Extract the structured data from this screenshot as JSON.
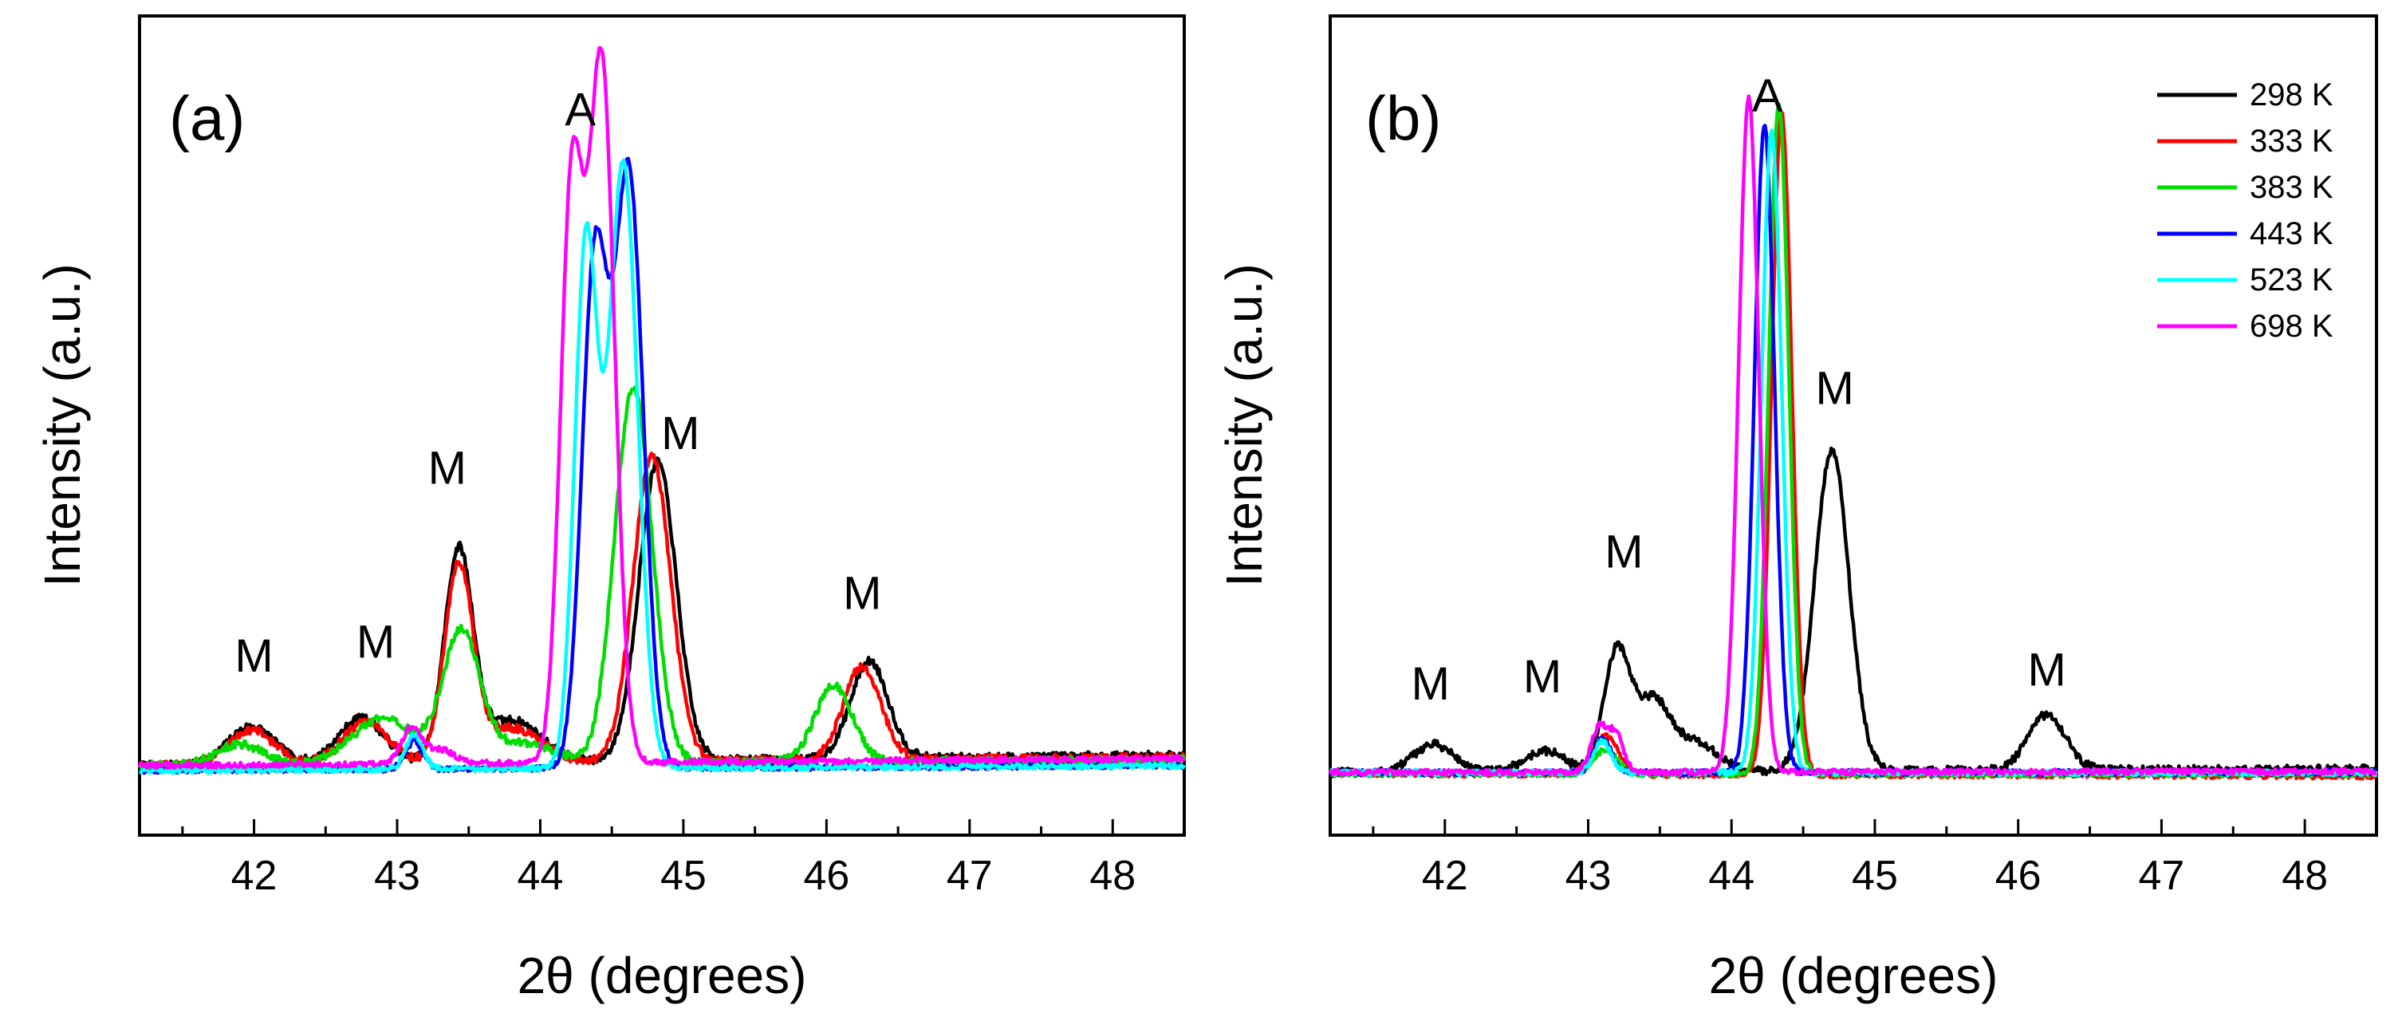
{
  "figure": {
    "panels": [
      "(a)",
      "(b)"
    ]
  },
  "chart_data": [
    {
      "type": "line",
      "panel_label": "(a)",
      "xlabel": "2θ (degrees)",
      "ylabel": "Intensity (a.u.)",
      "xlim": [
        41.2,
        48.5
      ],
      "ylim": [
        0,
        1.0
      ],
      "x_ticks": [
        42,
        43,
        44,
        45,
        46,
        47,
        48
      ],
      "y_ticks_visible": false,
      "grid": false,
      "annotations": [
        {
          "text": "M",
          "x": 42.0,
          "y": 0.235
        },
        {
          "text": "M",
          "x": 42.85,
          "y": 0.255
        },
        {
          "text": "M",
          "x": 43.35,
          "y": 0.505
        },
        {
          "text": "A",
          "x": 44.28,
          "y": 1.02
        },
        {
          "text": "M",
          "x": 44.98,
          "y": 0.555
        },
        {
          "text": "M",
          "x": 46.25,
          "y": 0.325
        }
      ],
      "series": [
        {
          "name": "298 K",
          "color": "#000000",
          "peaks": [
            [
              41.98,
              0.055,
              0.16
            ],
            [
              42.75,
              0.065,
              0.16
            ],
            [
              43.43,
              0.3,
              0.1
            ],
            [
              43.8,
              0.06,
              0.2
            ],
            [
              44.82,
              0.43,
              0.13
            ],
            [
              46.3,
              0.14,
              0.13
            ]
          ],
          "baseline": 0.1,
          "noise": 0.006,
          "end_level": 0.115
        },
        {
          "name": "333 K",
          "color": "#ff0000",
          "peaks": [
            [
              41.98,
              0.05,
              0.16
            ],
            [
              42.78,
              0.06,
              0.16
            ],
            [
              43.43,
              0.28,
              0.1
            ],
            [
              43.8,
              0.05,
              0.2
            ],
            [
              44.78,
              0.44,
              0.13
            ],
            [
              46.25,
              0.135,
              0.13
            ]
          ],
          "baseline": 0.1,
          "noise": 0.006,
          "end_level": 0.112
        },
        {
          "name": "383 K",
          "color": "#00dd00",
          "peaks": [
            [
              41.9,
              0.03,
              0.16
            ],
            [
              42.9,
              0.065,
              0.22
            ],
            [
              43.45,
              0.19,
              0.13
            ],
            [
              43.9,
              0.03,
              0.2
            ],
            [
              44.65,
              0.54,
              0.13
            ],
            [
              46.05,
              0.11,
              0.13
            ]
          ],
          "baseline": 0.1,
          "noise": 0.006,
          "end_level": 0.108
        },
        {
          "name": "443 K",
          "color": "#0000ff",
          "peaks": [
            [
              43.12,
              0.04,
              0.06
            ],
            [
              44.38,
              0.72,
              0.09
            ],
            [
              44.62,
              0.85,
              0.1
            ]
          ],
          "baseline": 0.093,
          "noise": 0.004,
          "end_level": 0.1
        },
        {
          "name": "523 K",
          "color": "#00ffff",
          "peaks": [
            [
              43.12,
              0.05,
              0.06
            ],
            [
              44.32,
              0.75,
              0.08
            ],
            [
              44.58,
              0.87,
              0.1
            ]
          ],
          "baseline": 0.093,
          "noise": 0.004,
          "end_level": 0.1
        },
        {
          "name": "698 K",
          "color": "#ff00ff",
          "peaks": [
            [
              43.1,
              0.05,
              0.07
            ],
            [
              43.3,
              0.02,
              0.1
            ],
            [
              44.22,
              0.82,
              0.08
            ],
            [
              44.43,
              1.0,
              0.09
            ]
          ],
          "baseline": 0.1,
          "noise": 0.004,
          "end_level": 0.11
        }
      ]
    },
    {
      "type": "line",
      "panel_label": "(b)",
      "xlabel": "2θ (degrees)",
      "ylabel": "Intensity (a.u.)",
      "xlim": [
        41.2,
        48.5
      ],
      "ylim": [
        0,
        1.0
      ],
      "x_ticks": [
        42,
        43,
        44,
        45,
        46,
        47,
        48
      ],
      "y_ticks_visible": false,
      "grid": false,
      "legend_position": "top-right",
      "annotations": [
        {
          "text": "M",
          "x": 41.9,
          "y": 0.195
        },
        {
          "text": "M",
          "x": 42.68,
          "y": 0.205
        },
        {
          "text": "M",
          "x": 43.25,
          "y": 0.385
        },
        {
          "text": "A",
          "x": 44.25,
          "y": 1.04
        },
        {
          "text": "M",
          "x": 44.72,
          "y": 0.62
        },
        {
          "text": "M",
          "x": 46.2,
          "y": 0.215
        }
      ],
      "series": [
        {
          "name": "298 K",
          "color": "#000000",
          "peaks": [
            [
              41.92,
              0.04,
              0.14
            ],
            [
              42.7,
              0.03,
              0.14
            ],
            [
              43.2,
              0.17,
              0.09
            ],
            [
              43.45,
              0.1,
              0.12
            ],
            [
              43.75,
              0.04,
              0.15
            ],
            [
              44.7,
              0.46,
              0.12
            ],
            [
              46.2,
              0.08,
              0.13
            ]
          ],
          "baseline": 0.09,
          "noise": 0.006,
          "end_level": 0.095
        },
        {
          "name": "333 K",
          "color": "#ff0000",
          "peaks": [
            [
              43.12,
              0.055,
              0.09
            ],
            [
              44.35,
              0.95,
              0.07
            ]
          ],
          "baseline": 0.088,
          "noise": 0.004,
          "end_level": 0.085
        },
        {
          "name": "383 K",
          "color": "#00dd00",
          "peaks": [
            [
              43.12,
              0.035,
              0.08
            ],
            [
              44.33,
              0.96,
              0.07
            ]
          ],
          "baseline": 0.088,
          "noise": 0.004,
          "end_level": 0.088
        },
        {
          "name": "443 K",
          "color": "#0000ff",
          "peaks": [
            [
              43.1,
              0.05,
              0.06
            ],
            [
              44.23,
              0.93,
              0.07
            ]
          ],
          "baseline": 0.09,
          "noise": 0.004,
          "end_level": 0.09
        },
        {
          "name": "523 K",
          "color": "#00ffff",
          "peaks": [
            [
              43.1,
              0.045,
              0.06
            ],
            [
              44.28,
              0.92,
              0.07
            ]
          ],
          "baseline": 0.09,
          "noise": 0.004,
          "end_level": 0.09
        },
        {
          "name": "698 K",
          "color": "#ff00ff",
          "peaks": [
            [
              43.08,
              0.065,
              0.06
            ],
            [
              43.2,
              0.05,
              0.05
            ],
            [
              44.12,
              0.97,
              0.07
            ]
          ],
          "baseline": 0.09,
          "noise": 0.004,
          "end_level": 0.092
        }
      ]
    }
  ]
}
